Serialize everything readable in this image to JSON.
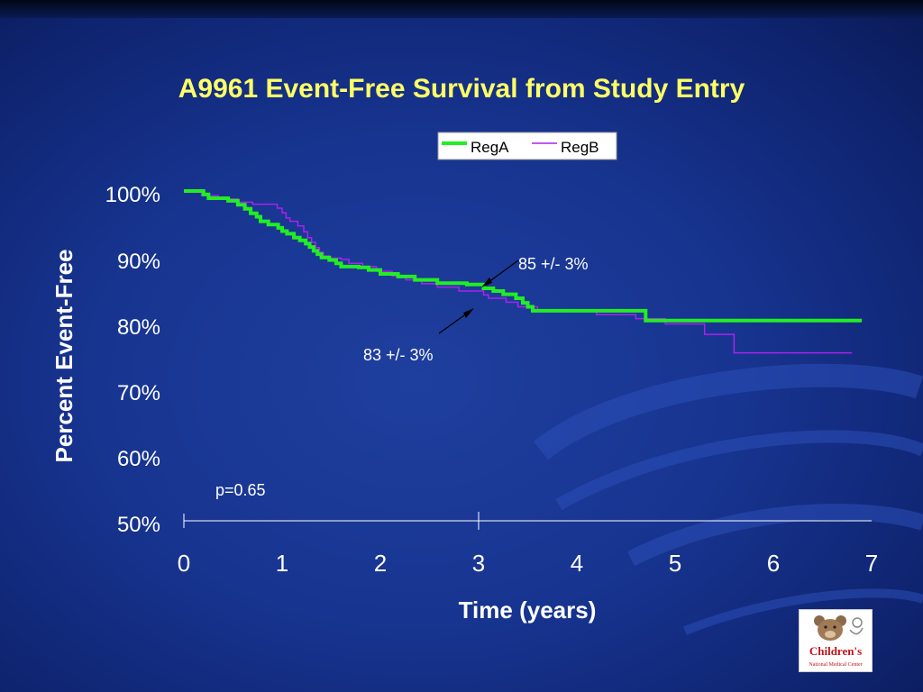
{
  "title": "A9961 Event-Free Survival from Study Entry",
  "chart_data": {
    "type": "line",
    "title": "A9961 Event-Free Survival from Study Entry",
    "xlabel": "Time (years)",
    "ylabel": "Percent Event-Free",
    "xlim": [
      0,
      7
    ],
    "ylim": [
      50,
      100
    ],
    "x_ticks": [
      "0",
      "1",
      "2",
      "3",
      "4",
      "5",
      "6",
      "7"
    ],
    "y_ticks": [
      "50%",
      "60%",
      "70%",
      "80%",
      "90%",
      "100%"
    ],
    "legend_position": "top-right",
    "series": [
      {
        "name": "RegA",
        "color": "#22ee22",
        "style": "step",
        "points": [
          [
            0,
            100
          ],
          [
            0.2,
            99.5
          ],
          [
            0.25,
            98.9
          ],
          [
            0.45,
            98.5
          ],
          [
            0.55,
            97.9
          ],
          [
            0.62,
            97.3
          ],
          [
            0.68,
            96.6
          ],
          [
            0.74,
            96.1
          ],
          [
            0.78,
            95.4
          ],
          [
            0.86,
            94.9
          ],
          [
            0.96,
            94.4
          ],
          [
            1.0,
            93.9
          ],
          [
            1.05,
            93.5
          ],
          [
            1.12,
            92.9
          ],
          [
            1.18,
            92.5
          ],
          [
            1.24,
            92.0
          ],
          [
            1.28,
            91.5
          ],
          [
            1.32,
            90.9
          ],
          [
            1.36,
            90.4
          ],
          [
            1.4,
            89.9
          ],
          [
            1.48,
            89.5
          ],
          [
            1.55,
            89.0
          ],
          [
            1.6,
            88.5
          ],
          [
            1.78,
            88.4
          ],
          [
            1.88,
            88.0
          ],
          [
            2.0,
            87.4
          ],
          [
            2.18,
            87.0
          ],
          [
            2.35,
            86.5
          ],
          [
            2.58,
            86.0
          ],
          [
            2.88,
            85.8
          ],
          [
            3.05,
            85.2
          ],
          [
            3.15,
            84.8
          ],
          [
            3.25,
            84.3
          ],
          [
            3.38,
            83.7
          ],
          [
            3.45,
            83.0
          ],
          [
            3.5,
            82.4
          ],
          [
            3.55,
            81.8
          ],
          [
            3.65,
            81.8
          ],
          [
            4.65,
            81.8
          ],
          [
            4.7,
            80.3
          ],
          [
            6.9,
            80.3
          ]
        ]
      },
      {
        "name": "RegB",
        "color": "#aa22ee",
        "style": "step",
        "points": [
          [
            0,
            99.9
          ],
          [
            0.18,
            99.3
          ],
          [
            0.35,
            98.8
          ],
          [
            0.55,
            98.3
          ],
          [
            0.7,
            98.0
          ],
          [
            0.95,
            97.4
          ],
          [
            1.0,
            96.7
          ],
          [
            1.04,
            95.9
          ],
          [
            1.08,
            95.4
          ],
          [
            1.16,
            94.7
          ],
          [
            1.22,
            93.8
          ],
          [
            1.26,
            92.9
          ],
          [
            1.3,
            92.2
          ],
          [
            1.34,
            91.4
          ],
          [
            1.38,
            90.7
          ],
          [
            1.42,
            90.1
          ],
          [
            1.48,
            89.8
          ],
          [
            1.6,
            89.6
          ],
          [
            1.68,
            89.0
          ],
          [
            1.82,
            88.5
          ],
          [
            1.96,
            87.8
          ],
          [
            2.12,
            87.1
          ],
          [
            2.26,
            86.5
          ],
          [
            2.42,
            85.9
          ],
          [
            2.58,
            85.4
          ],
          [
            2.8,
            84.8
          ],
          [
            3.05,
            84.2
          ],
          [
            3.1,
            83.7
          ],
          [
            3.28,
            83.1
          ],
          [
            3.4,
            82.4
          ],
          [
            3.6,
            81.9
          ],
          [
            3.95,
            81.9
          ],
          [
            4.2,
            81.2
          ],
          [
            4.6,
            80.6
          ],
          [
            4.9,
            79.8
          ],
          [
            5.3,
            78.2
          ],
          [
            5.6,
            75.4
          ],
          [
            6.8,
            75.4
          ]
        ]
      }
    ],
    "annotations": [
      {
        "text": "85 +/- 3%",
        "x": 3.05,
        "y": 85.3
      },
      {
        "text": "83 +/- 3%",
        "x": 2.95,
        "y": 83.0
      },
      {
        "text": "p=0.65",
        "x": 0.35,
        "y": 52.5
      }
    ]
  },
  "logo": {
    "text": "Children's",
    "subtext": "National Medical Center"
  }
}
